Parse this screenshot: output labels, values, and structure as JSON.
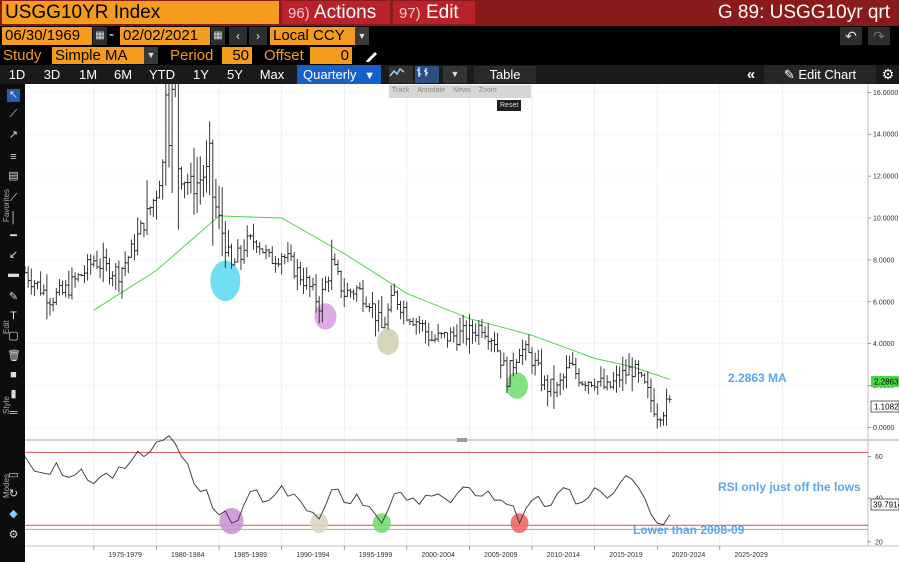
{
  "header": {
    "ticker": "USGG10YR Index",
    "actions_num": "96)",
    "actions_label": "Actions",
    "edit_num": "97)",
    "edit_label": "Edit",
    "title_right": "G 89: USGG10yr qrt"
  },
  "range": {
    "start_date": "06/30/1969",
    "dash": "-",
    "end_date": "02/02/2021",
    "currency": "Local CCY"
  },
  "study": {
    "study_label": "Study",
    "study_value": "Simple MA",
    "period_label": "Period",
    "period_value": "50",
    "offset_label": "Offset",
    "offset_value": "0"
  },
  "range_buttons": [
    "1D",
    "3D",
    "1M",
    "6M",
    "YTD",
    "1Y",
    "5Y",
    "Max"
  ],
  "frequency": "Quarterly",
  "table_label": "Table",
  "edit_chart_label": "Edit Chart",
  "mini_toolbar": [
    "Track",
    "Annotate",
    "News",
    "Zoom"
  ],
  "reset_label": "Reset",
  "left_toolbar_labels": [
    "Favorites",
    "Edit",
    "Style",
    "Modes"
  ],
  "colors": {
    "bloomberg_orange": "#f59b1e",
    "header_red": "#8b1a1a",
    "ma_green": "#4cd64c",
    "annotation_blue": "#5aa7ef",
    "rsi_red_line": "#e05050",
    "rsi_green_line": "#6ad86a"
  },
  "chart_data": [
    {
      "type": "bar",
      "subtype": "ohlc",
      "frequency": "quarterly",
      "series": [
        {
          "name": "USGG10YR Index",
          "x": [
            1975,
            1976,
            1977,
            1978,
            1979,
            1980,
            1981,
            1982,
            1983,
            1984,
            1985,
            1986,
            1987,
            1988,
            1989,
            1990,
            1991,
            1992,
            1993,
            1994,
            1995,
            1996,
            1997,
            1998,
            1999,
            2000,
            2001,
            2002,
            2003,
            2004,
            2005,
            2006,
            2007,
            2008,
            2009,
            2010,
            2011,
            2012,
            2013,
            2014,
            2015,
            2016,
            2017,
            2018,
            2019,
            2020,
            2021
          ],
          "values": [
            8.0,
            7.6,
            7.4,
            8.4,
            9.8,
            11.2,
            13.9,
            12.0,
            11.5,
            12.2,
            9.9,
            7.6,
            8.7,
            9.0,
            8.0,
            8.3,
            7.6,
            6.9,
            5.9,
            7.8,
            6.4,
            6.6,
            6.1,
            4.7,
            6.3,
            5.5,
            5.0,
            4.2,
            4.3,
            4.4,
            4.5,
            4.9,
            4.2,
            2.4,
            3.8,
            3.3,
            2.0,
            1.8,
            2.9,
            2.3,
            2.3,
            1.8,
            2.4,
            2.8,
            1.9,
            0.7,
            1.1
          ]
        },
        {
          "name": "MA",
          "x": [
            1975,
            1980,
            1985,
            1990,
            1995,
            2000,
            2005,
            2010,
            2015,
            2018,
            2020,
            2021
          ],
          "values": [
            5.6,
            7.5,
            10.1,
            10.0,
            8.3,
            6.4,
            5.2,
            4.4,
            3.3,
            2.9,
            2.5,
            2.29
          ]
        }
      ],
      "x_tick_labels": [
        "1975-1979",
        "1980-1984",
        "1985-1989",
        "1990-1994",
        "1995-1999",
        "2000-2004",
        "2005-2009",
        "2010-2014",
        "2015-2019",
        "2020-2024",
        "2025-2029"
      ],
      "y_tick_labels": [
        "16.0000",
        "14.0000",
        "12.0000",
        "10.0000",
        "8.0000",
        "6.0000",
        "4.0000",
        "2.0000",
        "0.0000"
      ],
      "ylim": [
        -0.5,
        16.3
      ],
      "last_price_tag": "1.1082",
      "ma_tag": "2.2863",
      "annotations": [
        {
          "text": "2.2863 MA",
          "color": "#5aa7ef"
        }
      ],
      "highlight_circles": [
        {
          "x": 1985.5,
          "y": 7.0,
          "color": "#58d8f0"
        },
        {
          "x": 1993.5,
          "y": 5.3,
          "color": "#d89be0"
        },
        {
          "x": 1998.5,
          "y": 4.1,
          "color": "#cfcfb0"
        },
        {
          "x": 2008.8,
          "y": 2.0,
          "color": "#6ddc6d"
        }
      ]
    },
    {
      "type": "line",
      "name": "RSI",
      "x": [
        1969.5,
        1971,
        1972,
        1973,
        1974,
        1975,
        1976,
        1977,
        1978,
        1979,
        1980,
        1981,
        1982,
        1983,
        1984,
        1985,
        1986,
        1987,
        1988,
        1989,
        1990,
        1991,
        1992,
        1993,
        1994,
        1995,
        1996,
        1997,
        1998,
        1999,
        2000,
        2001,
        2002,
        2003,
        2004,
        2005,
        2006,
        2007,
        2008,
        2009,
        2010,
        2011,
        2012,
        2013,
        2014,
        2015,
        2016,
        2017,
        2018,
        2019,
        2020,
        2021
      ],
      "values": [
        68,
        60,
        65,
        58,
        62,
        55,
        60,
        63,
        66,
        68,
        75,
        78,
        68,
        55,
        52,
        40,
        36,
        45,
        52,
        47,
        54,
        50,
        42,
        38,
        52,
        46,
        50,
        44,
        36,
        50,
        47,
        45,
        49,
        48,
        50,
        53,
        49,
        47,
        45,
        36,
        47,
        44,
        50,
        52,
        46,
        53,
        48,
        55,
        57,
        48,
        36,
        40
      ],
      "ylim": [
        25,
        75
      ],
      "y_tick_labels": [
        "60",
        "40",
        "20"
      ],
      "last_value_tag": "39.7914",
      "reference_lines": [
        {
          "value": 70,
          "color": "#e05050"
        },
        {
          "value": 35,
          "color": "#e05050"
        },
        {
          "value": 33,
          "color": "#6ad86a"
        }
      ],
      "annotations": [
        {
          "text": "RSI only just off the lows",
          "color": "#5aa7ef"
        },
        {
          "text": "Lower than 2008-09",
          "color": "#5aa7ef"
        }
      ],
      "highlight_circles": [
        {
          "x": 1986,
          "y": 37,
          "color": "#c98fd6"
        },
        {
          "x": 1993,
          "y": 36,
          "color": "#d6d6bc"
        },
        {
          "x": 1998,
          "y": 36,
          "color": "#6ddc6d"
        },
        {
          "x": 2009,
          "y": 36,
          "color": "#f06060"
        }
      ]
    }
  ]
}
